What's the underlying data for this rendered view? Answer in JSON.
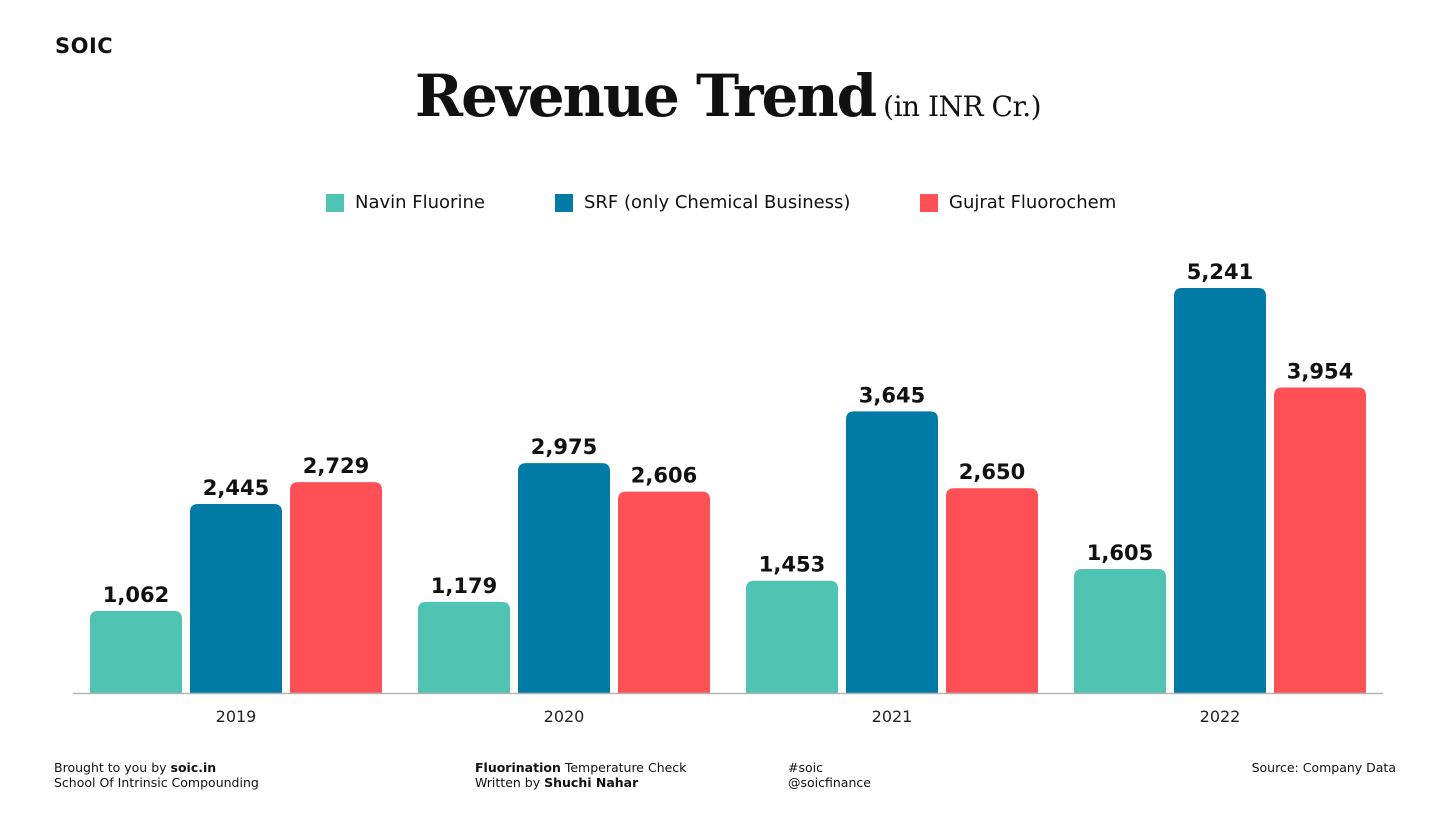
{
  "brand": "SOIC",
  "title": "Revenue Trend",
  "subtitle": "(in INR Cr.)",
  "chart_data": {
    "type": "bar",
    "categories": [
      "2019",
      "2020",
      "2021",
      "2022"
    ],
    "series": [
      {
        "name": "Navin Fluorine",
        "color": "#4FC4B3",
        "values": [
          1062,
          1179,
          1453,
          1605
        ]
      },
      {
        "name": "SRF (only Chemical Business)",
        "color": "#017BA5",
        "values": [
          2445,
          2975,
          3645,
          5241
        ]
      },
      {
        "name": "Gujrat Fluorochem",
        "color": "#FE5055",
        "values": [
          2729,
          2606,
          2650,
          3954
        ]
      }
    ],
    "data_labels": [
      [
        "1,062",
        "1,179",
        "1,453",
        "1,605"
      ],
      [
        "2,445",
        "2,975",
        "3,645",
        "5,241"
      ],
      [
        "2,729",
        "2,606",
        "2,650",
        "3,954"
      ]
    ],
    "ylim": [
      0,
      5241
    ],
    "legend": "top-center",
    "grid": false
  },
  "footer": {
    "left_line1_prefix": "Brought to you by ",
    "left_line1_bold": "soic.in",
    "left_line2": "School Of Intrinsic Compounding",
    "mid_line1_bold": "Fluorination",
    "mid_line1_rest": " Temperature Check",
    "mid_line2_prefix": "Written by ",
    "mid_line2_bold": "Shuchi Nahar",
    "tag_line1": "#soic",
    "tag_line2": "@soicfinance",
    "source": "Source: Company Data"
  }
}
